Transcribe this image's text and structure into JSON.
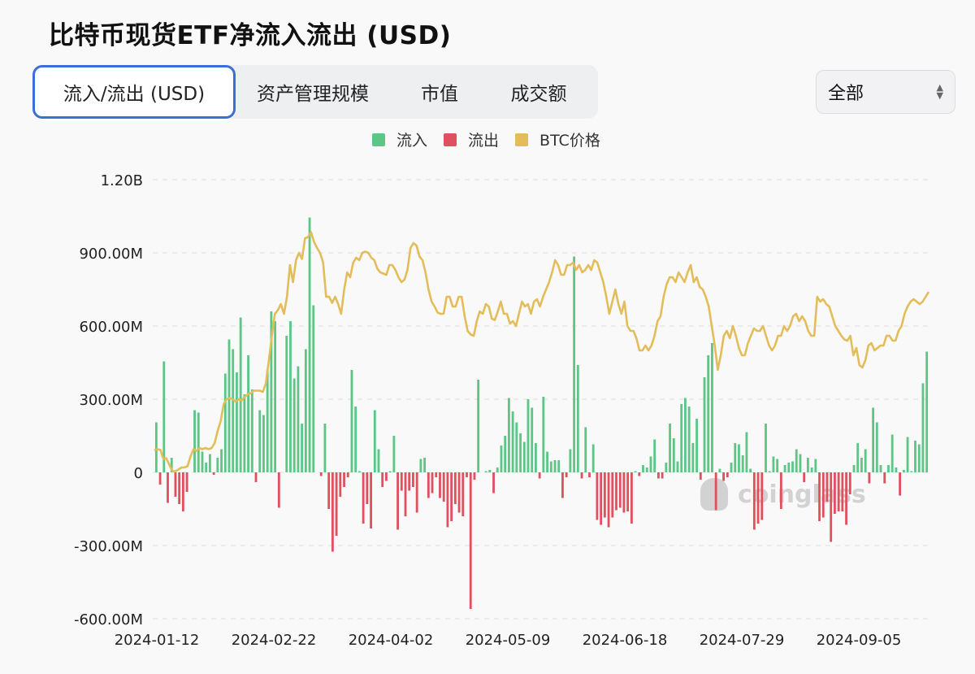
{
  "title": "比特币现货ETF净流入流出 (USD)",
  "tabs": [
    {
      "label": "流入/流出 (USD)",
      "active": true
    },
    {
      "label": "资产管理规模"
    },
    {
      "label": "市值"
    },
    {
      "label": "成交额"
    }
  ],
  "range_select": {
    "value": "全部"
  },
  "legend": [
    {
      "label": "流入",
      "color": "#5dc686"
    },
    {
      "label": "流出",
      "color": "#e05160"
    },
    {
      "label": "BTC价格",
      "color": "#e3bd5a"
    }
  ],
  "watermark": "coinglass",
  "chart_data": {
    "type": "bar",
    "y_axis": {
      "ticks": [
        "1.20B",
        "900.00M",
        "600.00M",
        "300.00M",
        "0",
        "-300.00M",
        "-600.00M"
      ],
      "ylim": [
        -600,
        1200
      ],
      "unit": "M USD"
    },
    "x_axis": {
      "ticks": [
        "2024-01-12",
        "2024-02-22",
        "2024-04-02",
        "2024-05-09",
        "2024-06-18",
        "2024-07-29",
        "2024-09-05"
      ]
    },
    "grid": true,
    "legend_position": "top-center",
    "flows_musd": [
      205,
      -50,
      455,
      -125,
      60,
      -100,
      -130,
      -160,
      -80,
      0,
      255,
      245,
      85,
      40,
      75,
      -10,
      60,
      95,
      405,
      545,
      505,
      410,
      635,
      320,
      480,
      340,
      -40,
      255,
      235,
      420,
      660,
      620,
      -145,
      0,
      560,
      620,
      385,
      435,
      200,
      505,
      1045,
      685,
      0,
      -15,
      200,
      -150,
      -325,
      -260,
      -100,
      -60,
      -20,
      420,
      270,
      5,
      -210,
      -130,
      -230,
      255,
      95,
      -60,
      -35,
      5,
      150,
      -235,
      -75,
      -180,
      -75,
      -60,
      -165,
      55,
      60,
      -105,
      -85,
      -20,
      -105,
      -120,
      -225,
      -200,
      -130,
      -165,
      -180,
      -20,
      -560,
      -30,
      380,
      0,
      5,
      10,
      -85,
      20,
      110,
      150,
      305,
      250,
      205,
      160,
      125,
      300,
      265,
      120,
      -25,
      310,
      85,
      45,
      50,
      50,
      -105,
      -20,
      95,
      885,
      440,
      -25,
      185,
      -20,
      115,
      -195,
      -215,
      -185,
      -225,
      -185,
      -155,
      -145,
      -165,
      -160,
      -210,
      5,
      -15,
      30,
      20,
      65,
      135,
      -25,
      -25,
      40,
      200,
      140,
      45,
      280,
      305,
      270,
      120,
      220,
      -30,
      390,
      480,
      530,
      -155,
      15,
      -35,
      -20,
      40,
      120,
      115,
      70,
      165,
      15,
      -235,
      -210,
      -195,
      200,
      5,
      65,
      55,
      -150,
      30,
      40,
      45,
      95,
      75,
      -40,
      60,
      20,
      55,
      -200,
      -185,
      -120,
      -285,
      -170,
      -160,
      -160,
      -215,
      -90,
      30,
      120,
      60,
      95,
      -45,
      265,
      205,
      30,
      -45,
      30,
      155,
      20,
      -95,
      10,
      145,
      5,
      130,
      115,
      365,
      495
    ],
    "btc_price_musd": [
      90,
      95,
      92,
      55,
      58,
      30,
      5,
      5,
      12,
      20,
      20,
      25,
      65,
      95,
      88,
      100,
      95,
      100,
      95,
      100,
      120,
      170,
      210,
      280,
      300,
      305,
      300,
      290,
      300,
      295,
      310,
      320,
      325,
      335,
      335,
      335,
      330,
      365,
      460,
      560,
      650,
      665,
      690,
      650,
      720,
      850,
      780,
      870,
      900,
      875,
      960,
      965,
      985,
      945,
      920,
      900,
      860,
      720,
      720,
      695,
      720,
      690,
      650,
      750,
      820,
      800,
      860,
      880,
      870,
      900,
      905,
      900,
      880,
      870,
      835,
      820,
      815,
      810,
      850,
      850,
      830,
      800,
      780,
      790,
      830,
      920,
      940,
      930,
      885,
      870,
      820,
      750,
      700,
      680,
      655,
      650,
      650,
      720,
      720,
      680,
      680,
      720,
      720,
      640,
      580,
      565,
      560,
      620,
      660,
      650,
      690,
      680,
      630,
      625,
      660,
      700,
      650,
      650,
      610,
      620,
      600,
      650,
      700,
      680,
      690,
      650,
      700,
      710,
      680,
      720,
      750,
      780,
      820,
      870,
      850,
      810,
      810,
      850,
      850,
      860,
      830,
      850,
      820,
      830,
      850,
      830,
      870,
      860,
      820,
      780,
      720,
      650,
      700,
      750,
      690,
      650,
      700,
      600,
      580,
      580,
      550,
      500,
      500,
      520,
      500,
      520,
      560,
      620,
      640,
      720,
      770,
      800,
      800,
      780,
      820,
      800,
      780,
      820,
      850,
      780,
      800,
      760,
      750,
      720,
      680,
      600,
      520,
      420,
      480,
      560,
      580,
      550,
      600,
      560,
      510,
      480,
      480,
      530,
      560,
      590,
      580,
      580,
      600,
      560,
      520,
      500,
      520,
      560,
      560,
      600,
      580,
      600,
      640,
      650,
      620,
      640,
      620,
      580,
      560,
      560,
      720,
      700,
      710,
      690,
      680,
      640,
      600,
      580,
      560,
      545,
      540,
      560,
      480,
      510,
      440,
      430,
      460,
      520,
      530,
      500,
      510,
      520,
      520,
      560,
      560,
      540,
      540,
      580,
      600,
      650,
      680,
      700,
      710,
      700,
      690,
      700,
      720,
      740
    ]
  }
}
